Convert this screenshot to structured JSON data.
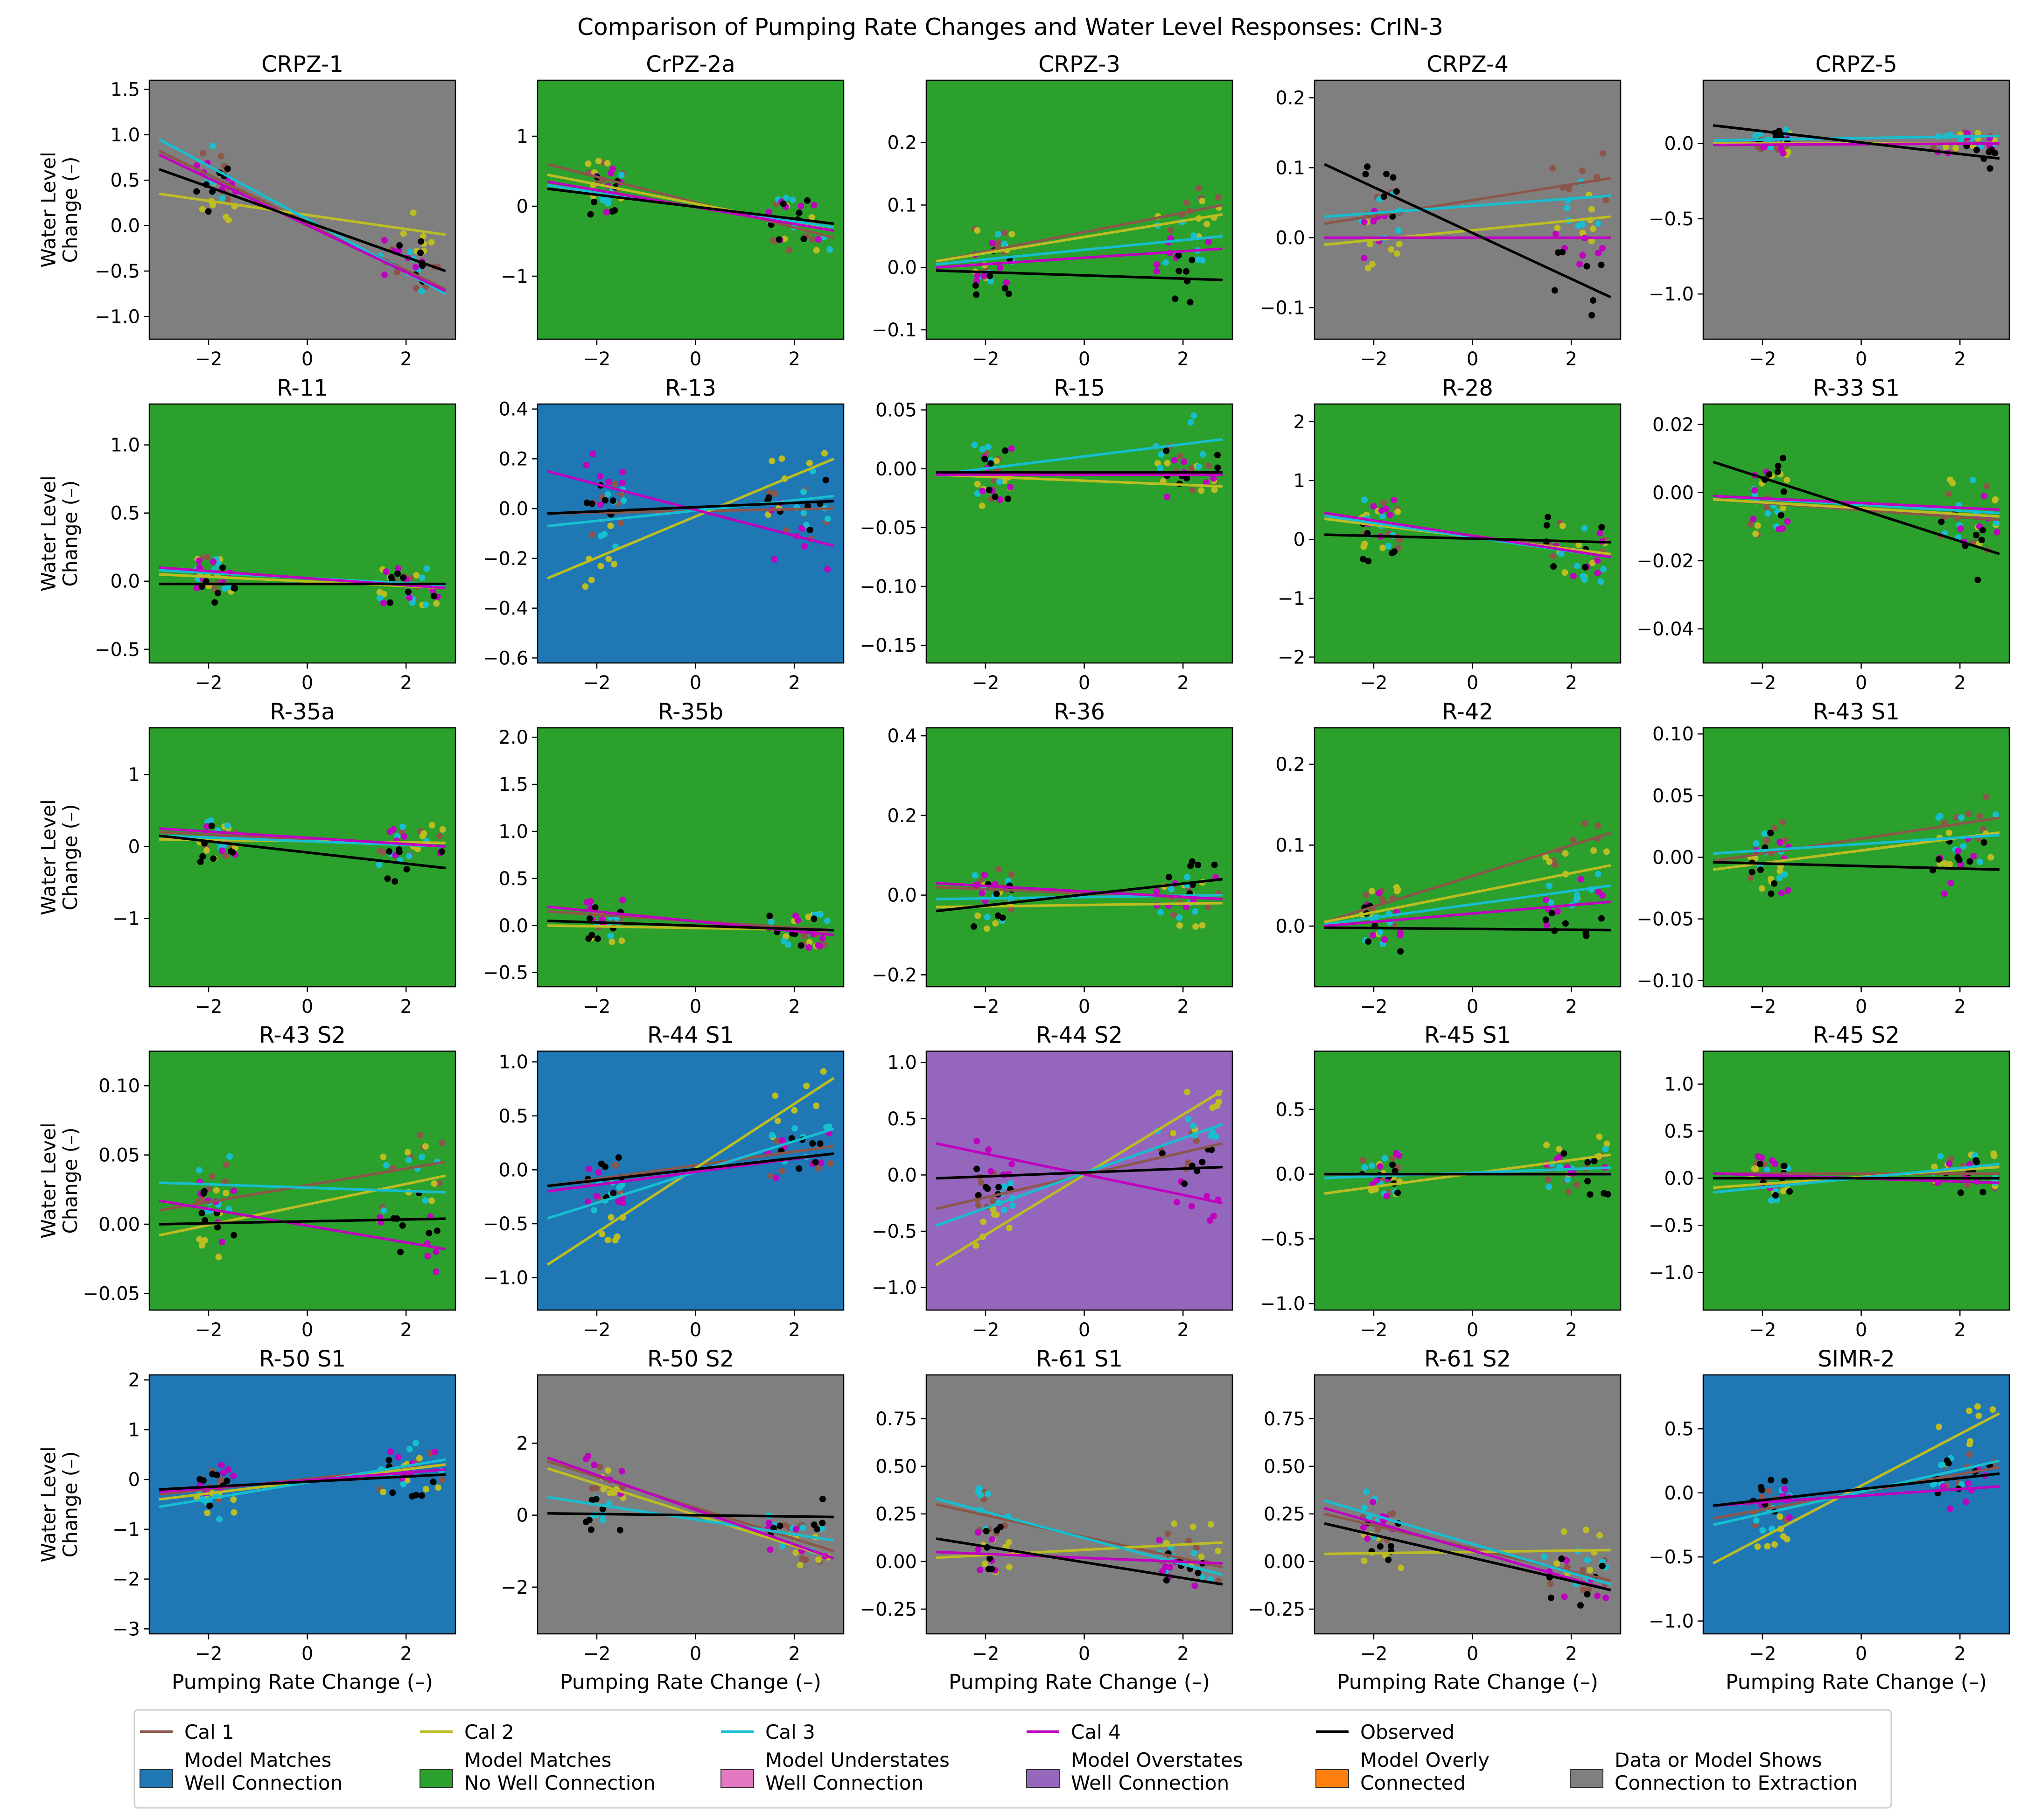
{
  "figure": {
    "title": "Comparison of Pumping Rate Changes and Water Level Responses: CrIN-3",
    "xlabel": "Pumping Rate Change (–)",
    "ylabel_line1": "Water Level",
    "ylabel_line2": "Change (–)"
  },
  "colors": {
    "Cal 1": "#8c564b",
    "Cal 2": "#bcbd22",
    "Cal 3": "#17becf",
    "Cal 4": "#c000c0",
    "Observed": "#000000",
    "blue": "#1f77b4",
    "green": "#2ca02c",
    "pink": "#e377c2",
    "purple": "#9467bd",
    "orange": "#ff7f0e",
    "gray": "#7f7f7f"
  },
  "legend": {
    "lines": [
      "Cal 1",
      "Cal 2",
      "Cal 3",
      "Cal 4",
      "Observed"
    ],
    "patches": [
      {
        "key": "blue",
        "line1": "Model Matches",
        "line2": "Well Connection"
      },
      {
        "key": "green",
        "line1": "Model Matches",
        "line2": "No Well Connection"
      },
      {
        "key": "pink",
        "line1": "Model Understates",
        "line2": "Well Connection"
      },
      {
        "key": "purple",
        "line1": "Model Overstates",
        "line2": "Well Connection"
      },
      {
        "key": "orange",
        "line1": "Model Overly",
        "line2": "Connected"
      },
      {
        "key": "gray",
        "line1": "Data or Model Shows",
        "line2": "Connection to Extraction"
      }
    ]
  },
  "chart_data": [
    {
      "type": "scatter",
      "title": "CRPZ-1",
      "bg": "gray",
      "xlim": [
        -3.2,
        3.0
      ],
      "ylim": [
        -1.25,
        1.6
      ],
      "yticks": [
        -1.0,
        -0.5,
        0.0,
        0.5,
        1.0,
        1.5
      ],
      "ytick_labels": [
        "−1.0",
        "−0.5",
        "0.0",
        "0.5",
        "1.0",
        "1.5"
      ],
      "fits": {
        "Cal 1": [
          0.82,
          -0.7
        ],
        "Cal 2": [
          0.35,
          -0.1
        ],
        "Cal 3": [
          0.95,
          -0.75
        ],
        "Cal 4": [
          0.78,
          -0.72
        ],
        "Observed": [
          0.62,
          -0.5
        ]
      },
      "spread": 0.55
    },
    {
      "type": "scatter",
      "title": "CrPZ-2a",
      "bg": "green",
      "xlim": [
        -3.2,
        3.0
      ],
      "ylim": [
        -1.9,
        1.8
      ],
      "yticks": [
        -1,
        0,
        1
      ],
      "ytick_labels": [
        "−1",
        "0",
        "1"
      ],
      "fits": {
        "Cal 1": [
          0.6,
          -0.45
        ],
        "Cal 2": [
          0.45,
          -0.35
        ],
        "Cal 3": [
          0.3,
          -0.3
        ],
        "Cal 4": [
          0.35,
          -0.35
        ],
        "Observed": [
          0.25,
          -0.25
        ]
      },
      "spread": 0.7
    },
    {
      "type": "scatter",
      "title": "CRPZ-3",
      "bg": "green",
      "xlim": [
        -3.2,
        3.0
      ],
      "ylim": [
        -0.115,
        0.3
      ],
      "yticks": [
        -0.1,
        0.0,
        0.1,
        0.2
      ],
      "ytick_labels": [
        "−0.1",
        "0.0",
        "0.1",
        "0.2"
      ],
      "fits": {
        "Cal 1": [
          0.01,
          0.1
        ],
        "Cal 2": [
          0.01,
          0.085
        ],
        "Cal 3": [
          0.005,
          0.05
        ],
        "Cal 4": [
          0.0,
          0.03
        ],
        "Observed": [
          -0.005,
          -0.02
        ]
      },
      "spread": 0.08
    },
    {
      "type": "scatter",
      "title": "CRPZ-4",
      "bg": "gray",
      "xlim": [
        -3.2,
        3.0
      ],
      "ylim": [
        -0.145,
        0.225
      ],
      "yticks": [
        -0.1,
        0.0,
        0.1,
        0.2
      ],
      "ytick_labels": [
        "−0.1",
        "0.0",
        "0.1",
        "0.2"
      ],
      "fits": {
        "Cal 1": [
          0.02,
          0.085
        ],
        "Cal 2": [
          -0.01,
          0.03
        ],
        "Cal 3": [
          0.03,
          0.06
        ],
        "Cal 4": [
          0.0,
          0.0
        ],
        "Observed": [
          0.105,
          -0.085
        ]
      },
      "spread": 0.08
    },
    {
      "type": "scatter",
      "title": "CRPZ-5",
      "bg": "gray",
      "xlim": [
        -3.2,
        3.0
      ],
      "ylim": [
        -1.3,
        0.42
      ],
      "yticks": [
        -1.0,
        -0.5,
        0.0
      ],
      "ytick_labels": [
        "−1.0",
        "−0.5",
        "0.0"
      ],
      "fits": {
        "Cal 1": [
          0.0,
          0.0
        ],
        "Cal 2": [
          0.0,
          0.0
        ],
        "Cal 3": [
          0.02,
          0.05
        ],
        "Cal 4": [
          -0.01,
          0.0
        ],
        "Observed": [
          0.12,
          -0.1
        ]
      },
      "spread": 0.15
    },
    {
      "type": "scatter",
      "title": "R-11",
      "bg": "green",
      "xlim": [
        -3.2,
        3.0
      ],
      "ylim": [
        -0.6,
        1.3
      ],
      "yticks": [
        -0.5,
        0.0,
        0.5,
        1.0
      ],
      "ytick_labels": [
        "−0.5",
        "0.0",
        "0.5",
        "1.0"
      ],
      "fits": {
        "Cal 1": [
          0.1,
          -0.05
        ],
        "Cal 2": [
          0.05,
          -0.05
        ],
        "Cal 3": [
          0.08,
          -0.03
        ],
        "Cal 4": [
          0.1,
          -0.05
        ],
        "Observed": [
          -0.02,
          -0.02
        ]
      },
      "spread": 0.3
    },
    {
      "type": "scatter",
      "title": "R-13",
      "bg": "blue",
      "xlim": [
        -3.2,
        3.0
      ],
      "ylim": [
        -0.62,
        0.42
      ],
      "yticks": [
        -0.6,
        -0.4,
        -0.2,
        0.0,
        0.2,
        0.4
      ],
      "ytick_labels": [
        "−0.6",
        "−0.4",
        "−0.2",
        "0.0",
        "0.2",
        "0.4"
      ],
      "fits": {
        "Cal 1": [
          -0.02,
          0.0
        ],
        "Cal 2": [
          -0.28,
          0.2
        ],
        "Cal 3": [
          -0.07,
          0.05
        ],
        "Cal 4": [
          0.15,
          -0.15
        ],
        "Observed": [
          -0.02,
          0.03
        ]
      },
      "spread": 0.25
    },
    {
      "type": "scatter",
      "title": "R-15",
      "bg": "green",
      "xlim": [
        -3.2,
        3.0
      ],
      "ylim": [
        -0.165,
        0.055
      ],
      "yticks": [
        -0.15,
        -0.1,
        -0.05,
        0.0,
        0.05
      ],
      "ytick_labels": [
        "−0.15",
        "−0.10",
        "−0.05",
        "0.00",
        "0.05"
      ],
      "fits": {
        "Cal 1": [
          -0.005,
          -0.003
        ],
        "Cal 2": [
          -0.005,
          -0.015
        ],
        "Cal 3": [
          -0.005,
          0.025
        ],
        "Cal 4": [
          -0.005,
          -0.005
        ],
        "Observed": [
          -0.003,
          -0.003
        ]
      },
      "spread": 0.05
    },
    {
      "type": "scatter",
      "title": "R-28",
      "bg": "green",
      "xlim": [
        -3.2,
        3.0
      ],
      "ylim": [
        -2.1,
        2.3
      ],
      "yticks": [
        -2,
        -1,
        0,
        1,
        2
      ],
      "ytick_labels": [
        "−2",
        "−1",
        "0",
        "1",
        "2"
      ],
      "fits": {
        "Cal 1": [
          0.4,
          -0.25
        ],
        "Cal 2": [
          0.35,
          -0.25
        ],
        "Cal 3": [
          0.4,
          -0.3
        ],
        "Cal 4": [
          0.45,
          -0.3
        ],
        "Observed": [
          0.08,
          -0.05
        ]
      },
      "spread": 0.9
    },
    {
      "type": "scatter",
      "title": "R-33 S1",
      "bg": "green",
      "xlim": [
        -3.2,
        3.0
      ],
      "ylim": [
        -0.05,
        0.026
      ],
      "yticks": [
        -0.04,
        -0.02,
        0.0,
        0.02
      ],
      "ytick_labels": [
        "−0.04",
        "−0.02",
        "0.00",
        "0.02"
      ],
      "fits": {
        "Cal 1": [
          -0.002,
          -0.008
        ],
        "Cal 2": [
          -0.002,
          -0.007
        ],
        "Cal 3": [
          -0.001,
          -0.006
        ],
        "Cal 4": [
          -0.001,
          -0.005
        ],
        "Observed": [
          0.009,
          -0.018
        ]
      },
      "spread": 0.02
    },
    {
      "type": "scatter",
      "title": "R-35a",
      "bg": "green",
      "xlim": [
        -3.2,
        3.0
      ],
      "ylim": [
        -1.95,
        1.65
      ],
      "yticks": [
        -1,
        0,
        1
      ],
      "ytick_labels": [
        "−1",
        "0",
        "1"
      ],
      "fits": {
        "Cal 1": [
          0.2,
          0.0
        ],
        "Cal 2": [
          0.1,
          0.05
        ],
        "Cal 3": [
          0.15,
          0.0
        ],
        "Cal 4": [
          0.25,
          0.0
        ],
        "Observed": [
          0.15,
          -0.3
        ]
      },
      "spread": 0.6
    },
    {
      "type": "scatter",
      "title": "R-35b",
      "bg": "green",
      "xlim": [
        -3.2,
        3.0
      ],
      "ylim": [
        -0.65,
        2.1
      ],
      "yticks": [
        -0.5,
        0.0,
        0.5,
        1.0,
        1.5,
        2.0
      ],
      "ytick_labels": [
        "−0.5",
        "0.0",
        "0.5",
        "1.0",
        "1.5",
        "2.0"
      ],
      "fits": {
        "Cal 1": [
          0.15,
          -0.05
        ],
        "Cal 2": [
          0.0,
          -0.05
        ],
        "Cal 3": [
          0.05,
          -0.05
        ],
        "Cal 4": [
          0.2,
          -0.1
        ],
        "Observed": [
          0.05,
          -0.05
        ]
      },
      "spread": 0.35
    },
    {
      "type": "scatter",
      "title": "R-36",
      "bg": "green",
      "xlim": [
        -3.2,
        3.0
      ],
      "ylim": [
        -0.23,
        0.42
      ],
      "yticks": [
        -0.2,
        0.0,
        0.2,
        0.4
      ],
      "ytick_labels": [
        "−0.2",
        "0.0",
        "0.2",
        "0.4"
      ],
      "fits": {
        "Cal 1": [
          0.02,
          -0.01
        ],
        "Cal 2": [
          -0.03,
          -0.02
        ],
        "Cal 3": [
          -0.01,
          0.0
        ],
        "Cal 4": [
          0.03,
          -0.01
        ],
        "Observed": [
          -0.04,
          0.04
        ]
      },
      "spread": 0.12
    },
    {
      "type": "scatter",
      "title": "R-42",
      "bg": "green",
      "xlim": [
        -3.2,
        3.0
      ],
      "ylim": [
        -0.075,
        0.245
      ],
      "yticks": [
        0.0,
        0.1,
        0.2
      ],
      "ytick_labels": [
        "0.0",
        "0.1",
        "0.2"
      ],
      "fits": {
        "Cal 1": [
          0.005,
          0.115
        ],
        "Cal 2": [
          0.005,
          0.075
        ],
        "Cal 3": [
          0.002,
          0.05
        ],
        "Cal 4": [
          0.0,
          0.03
        ],
        "Observed": [
          -0.002,
          -0.005
        ]
      },
      "spread": 0.07
    },
    {
      "type": "scatter",
      "title": "R-43 S1",
      "bg": "green",
      "xlim": [
        -3.2,
        3.0
      ],
      "ylim": [
        -0.105,
        0.105
      ],
      "yticks": [
        -0.1,
        -0.05,
        0.0,
        0.05,
        0.1
      ],
      "ytick_labels": [
        "−0.10",
        "−0.05",
        "0.00",
        "0.05",
        "0.10"
      ],
      "fits": {
        "Cal 1": [
          -0.003,
          0.032
        ],
        "Cal 2": [
          -0.01,
          0.02
        ],
        "Cal 3": [
          0.003,
          0.018
        ],
        "Cal 4": [
          -0.004,
          -0.01
        ],
        "Observed": [
          -0.004,
          -0.01
        ]
      },
      "spread": 0.05
    },
    {
      "type": "scatter",
      "title": "R-43 S2",
      "bg": "green",
      "xlim": [
        -3.2,
        3.0
      ],
      "ylim": [
        -0.062,
        0.125
      ],
      "yticks": [
        -0.05,
        0.0,
        0.05,
        0.1
      ],
      "ytick_labels": [
        "−0.05",
        "0.00",
        "0.05",
        "0.10"
      ],
      "fits": {
        "Cal 1": [
          0.01,
          0.045
        ],
        "Cal 2": [
          -0.008,
          0.035
        ],
        "Cal 3": [
          0.03,
          0.023
        ],
        "Cal 4": [
          0.017,
          -0.018
        ],
        "Observed": [
          0.0,
          0.004
        ]
      },
      "spread": 0.05
    },
    {
      "type": "scatter",
      "title": "R-44 S1",
      "bg": "blue",
      "xlim": [
        -3.2,
        3.0
      ],
      "ylim": [
        -1.3,
        1.1
      ],
      "yticks": [
        -1.0,
        -0.5,
        0.0,
        0.5,
        1.0
      ],
      "ytick_labels": [
        "−1.0",
        "−0.5",
        "0.0",
        "0.5",
        "1.0"
      ],
      "fits": {
        "Cal 1": [
          -0.15,
          0.22
        ],
        "Cal 2": [
          -0.88,
          0.85
        ],
        "Cal 3": [
          -0.45,
          0.38
        ],
        "Cal 4": [
          -0.2,
          0.15
        ],
        "Observed": [
          -0.15,
          0.15
        ]
      },
      "spread": 0.4
    },
    {
      "type": "scatter",
      "title": "R-44 S2",
      "bg": "purple",
      "xlim": [
        -3.2,
        3.0
      ],
      "ylim": [
        -1.2,
        1.1
      ],
      "yticks": [
        -1.0,
        -0.5,
        0.0,
        0.5,
        1.0
      ],
      "ytick_labels": [
        "−1.0",
        "−0.5",
        "0.0",
        "0.5",
        "1.0"
      ],
      "fits": {
        "Cal 1": [
          -0.3,
          0.28
        ],
        "Cal 2": [
          -0.8,
          0.75
        ],
        "Cal 3": [
          -0.45,
          0.45
        ],
        "Cal 4": [
          0.28,
          -0.25
        ],
        "Observed": [
          -0.03,
          0.07
        ]
      },
      "spread": 0.4
    },
    {
      "type": "scatter",
      "title": "R-45 S1",
      "bg": "green",
      "xlim": [
        -3.2,
        3.0
      ],
      "ylim": [
        -1.05,
        0.95
      ],
      "yticks": [
        -1.0,
        -0.5,
        0.0,
        0.5
      ],
      "ytick_labels": [
        "−1.0",
        "−0.5",
        "0.0",
        "0.5"
      ],
      "fits": {
        "Cal 1": [
          0.0,
          0.0
        ],
        "Cal 2": [
          -0.15,
          0.15
        ],
        "Cal 3": [
          -0.03,
          0.05
        ],
        "Cal 4": [
          0.0,
          0.0
        ],
        "Observed": [
          0.0,
          0.0
        ]
      },
      "spread": 0.35
    },
    {
      "type": "scatter",
      "title": "R-45 S2",
      "bg": "green",
      "xlim": [
        -3.2,
        3.0
      ],
      "ylim": [
        -1.4,
        1.35
      ],
      "yticks": [
        -1.0,
        -0.5,
        0.0,
        0.5,
        1.0
      ],
      "ytick_labels": [
        "−1.0",
        "−0.5",
        "0.0",
        "0.5",
        "1.0"
      ],
      "fits": {
        "Cal 1": [
          0.05,
          0.05
        ],
        "Cal 2": [
          -0.1,
          0.12
        ],
        "Cal 3": [
          -0.15,
          0.15
        ],
        "Cal 4": [
          0.05,
          -0.05
        ],
        "Observed": [
          0.0,
          0.0
        ]
      },
      "spread": 0.4
    },
    {
      "type": "scatter",
      "title": "R-50 S1",
      "bg": "blue",
      "xlim": [
        -3.2,
        3.0
      ],
      "ylim": [
        -3.1,
        2.1
      ],
      "yticks": [
        -3,
        -2,
        -1,
        0,
        1,
        2
      ],
      "ytick_labels": [
        "−3",
        "−2",
        "−1",
        "0",
        "1",
        "2"
      ],
      "fits": {
        "Cal 1": [
          -0.3,
          0.3
        ],
        "Cal 2": [
          -0.4,
          0.3
        ],
        "Cal 3": [
          -0.55,
          0.4
        ],
        "Cal 4": [
          -0.25,
          0.2
        ],
        "Observed": [
          -0.2,
          0.1
        ]
      },
      "spread": 0.9
    },
    {
      "type": "scatter",
      "title": "R-50 S2",
      "bg": "gray",
      "xlim": [
        -3.2,
        3.0
      ],
      "ylim": [
        -3.3,
        3.9
      ],
      "yticks": [
        -2,
        0,
        2
      ],
      "ytick_labels": [
        "−2",
        "0",
        "2"
      ],
      "fits": {
        "Cal 1": [
          1.5,
          -1.0
        ],
        "Cal 2": [
          1.3,
          -1.2
        ],
        "Cal 3": [
          0.5,
          -0.7
        ],
        "Cal 4": [
          1.6,
          -1.2
        ],
        "Observed": [
          0.05,
          -0.05
        ]
      },
      "spread": 1.0
    },
    {
      "type": "scatter",
      "title": "R-61 S1",
      "bg": "gray",
      "xlim": [
        -3.2,
        3.0
      ],
      "ylim": [
        -0.38,
        0.98
      ],
      "yticks": [
        -0.25,
        0.0,
        0.25,
        0.5,
        0.75
      ],
      "ytick_labels": [
        "−0.25",
        "0.00",
        "0.25",
        "0.50",
        "0.75"
      ],
      "fits": {
        "Cal 1": [
          0.3,
          -0.03
        ],
        "Cal 2": [
          0.02,
          0.1
        ],
        "Cal 3": [
          0.33,
          -0.07
        ],
        "Cal 4": [
          0.05,
          -0.01
        ],
        "Observed": [
          0.12,
          -0.12
        ]
      },
      "spread": 0.25
    },
    {
      "type": "scatter",
      "title": "R-61 S2",
      "bg": "gray",
      "xlim": [
        -3.2,
        3.0
      ],
      "ylim": [
        -0.38,
        0.98
      ],
      "yticks": [
        -0.25,
        0.0,
        0.25,
        0.5,
        0.75
      ],
      "ytick_labels": [
        "−0.25",
        "0.00",
        "0.25",
        "0.50",
        "0.75"
      ],
      "fits": {
        "Cal 1": [
          0.25,
          -0.1
        ],
        "Cal 2": [
          0.04,
          0.06
        ],
        "Cal 3": [
          0.32,
          -0.12
        ],
        "Cal 4": [
          0.28,
          -0.15
        ],
        "Observed": [
          0.2,
          -0.15
        ]
      },
      "spread": 0.25
    },
    {
      "type": "scatter",
      "title": "SIMR-2",
      "bg": "blue",
      "xlim": [
        -3.2,
        3.0
      ],
      "ylim": [
        -1.1,
        0.92
      ],
      "yticks": [
        -1.0,
        -0.5,
        0.0,
        0.5
      ],
      "ytick_labels": [
        "−1.0",
        "−0.5",
        "0.0",
        "0.5"
      ],
      "fits": {
        "Cal 1": [
          -0.2,
          0.2
        ],
        "Cal 2": [
          -0.55,
          0.62
        ],
        "Cal 3": [
          -0.25,
          0.25
        ],
        "Cal 4": [
          -0.1,
          0.05
        ],
        "Observed": [
          -0.1,
          0.15
        ]
      },
      "spread": 0.3
    }
  ]
}
